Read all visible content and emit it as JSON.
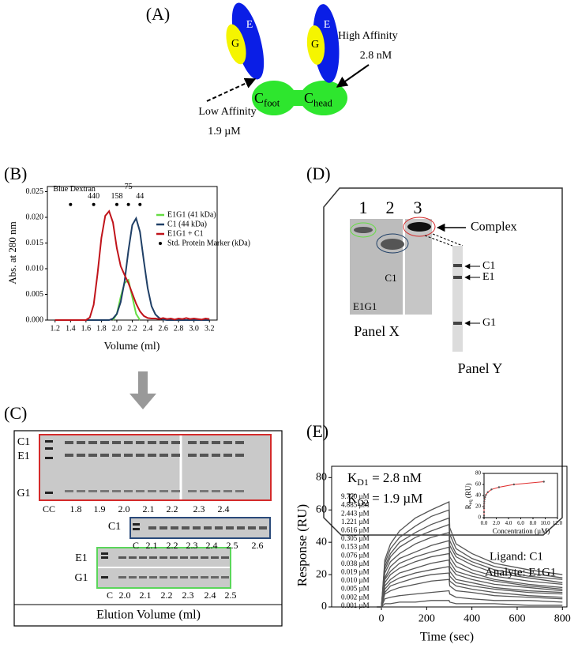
{
  "panel_a": {
    "label": "(A)",
    "e_left": "E",
    "g_left": "G",
    "e_right": "E",
    "g_right": "G",
    "c_foot": {
      "main": "C",
      "sub": "foot"
    },
    "c_head": {
      "main": "C",
      "sub": "head"
    },
    "high_affinity": {
      "label": "High Affinity",
      "value": "2.8 nM"
    },
    "low_affinity": {
      "label": "Low Affinity",
      "value": "1.9 µM"
    }
  },
  "panel_c": {
    "label": "(C)",
    "gel_1": {
      "bands": [
        "C1",
        "E1",
        "G1"
      ],
      "lanes": [
        "CC",
        "1.8",
        "1.9",
        "2.0",
        "2.1",
        "2.2",
        "2.3",
        "2.4"
      ]
    },
    "gel_2": {
      "bands": [
        "C1"
      ],
      "lanes": [
        "C",
        "2.1",
        "2.2",
        "2.3",
        "2.4",
        "2.5",
        "2.6"
      ]
    },
    "gel_3": {
      "bands": [
        "E1",
        "G1"
      ],
      "lanes": [
        "C",
        "2.0",
        "2.1",
        "2.2",
        "2.3",
        "2.4",
        "2.5"
      ]
    },
    "axis_label": "Elution Volume (ml)"
  },
  "panel_d": {
    "label": "(D)",
    "lanes": [
      "1",
      "2",
      "3"
    ],
    "complex": "Complex",
    "panel_x": {
      "title": "Panel X",
      "lane_labels": [
        "C1",
        "E1G1"
      ]
    },
    "panel_y": {
      "title": "Panel Y",
      "bands": [
        "C1",
        "E1",
        "G1"
      ]
    }
  },
  "chart_data": [
    {
      "type": "line",
      "panel_label": "(B)",
      "ylabel": "Abs. at 280 nm",
      "xlabel": "Volume (ml)",
      "x": [
        1.2,
        1.25,
        1.3,
        1.35,
        1.4,
        1.45,
        1.5,
        1.55,
        1.6,
        1.65,
        1.7,
        1.75,
        1.8,
        1.85,
        1.9,
        1.95,
        2.0,
        2.05,
        2.1,
        2.15,
        2.2,
        2.25,
        2.3,
        2.35,
        2.4,
        2.45,
        2.5,
        2.55,
        2.6,
        2.65,
        2.7,
        2.75,
        2.8,
        2.85,
        2.9,
        2.95,
        3.0,
        3.05,
        3.1,
        3.15,
        3.2
      ],
      "series": [
        {
          "name": "E1G1 (41 kDa)",
          "color": "#66dd44",
          "values": [
            null,
            null,
            null,
            null,
            null,
            null,
            null,
            null,
            null,
            null,
            null,
            null,
            null,
            null,
            null,
            0,
            0.0012,
            0.0045,
            0.0072,
            0.0078,
            0.0045,
            0.0012,
            0,
            null,
            null,
            null,
            null,
            null,
            null,
            null,
            null,
            null,
            null,
            null,
            null,
            null,
            null,
            null,
            null,
            null,
            null
          ]
        },
        {
          "name": "C1 (44 kDa)",
          "color": "#1f3f66",
          "values": [
            0,
            0,
            0,
            0,
            0,
            0,
            0,
            0,
            0,
            0,
            0,
            0,
            0,
            0,
            0,
            0.0003,
            0.0012,
            0.0035,
            0.0075,
            0.0135,
            0.0185,
            0.0198,
            0.0172,
            0.0115,
            0.0062,
            0.0027,
            0.0011,
            0.0004,
            0.0001,
            0,
            0,
            0,
            0,
            0,
            0,
            0,
            0,
            0,
            0,
            0,
            0
          ]
        },
        {
          "name": "E1G1 + C1",
          "color": "#c0131a",
          "values": [
            0,
            0,
            0,
            0,
            0,
            0,
            0,
            0,
            0,
            0.0005,
            0.003,
            0.009,
            0.016,
            0.0203,
            0.0212,
            0.019,
            0.014,
            0.0105,
            0.0088,
            0.0072,
            0.0052,
            0.0032,
            0.0017,
            0.0008,
            0.0004,
            0.0003,
            0.0003,
            0.0002,
            0.0004,
            0.0002,
            0.0003,
            0.0001,
            0.0003,
            0.0002,
            0.0004,
            0.0002,
            0.0003,
            0.0002,
            0.0001,
            0.0003,
            0.0002
          ]
        }
      ],
      "markers": {
        "name": "Std. Protein Marker (kDa)",
        "color": "#000000",
        "x": [
          1.4,
          1.7,
          2.0,
          2.15,
          2.3
        ],
        "values": [
          0.0225,
          0.0225,
          0.0225,
          0.0225,
          0.0225
        ],
        "labels": [
          "Blue Dextran",
          "440",
          "158",
          "75",
          "44"
        ]
      },
      "xlim": [
        1.1,
        3.3
      ],
      "ylim": [
        0,
        0.026
      ],
      "xticks": [
        1.2,
        1.4,
        1.6,
        1.8,
        {
          "value": 2,
          "label": "2.0"
        },
        2.2,
        2.4,
        2.6,
        2.8,
        {
          "value": 3,
          "label": "3.0"
        },
        3.2
      ],
      "yticks": [
        {
          "value": 0,
          "label": "0.000"
        },
        {
          "value": 0.005,
          "label": "0.005"
        },
        {
          "value": 0.01,
          "label": "0.010"
        },
        {
          "value": 0.015,
          "label": "0.015"
        },
        {
          "value": 0.02,
          "label": "0.020"
        },
        {
          "value": 0.025,
          "label": "0.025"
        }
      ],
      "grid": false,
      "legend_loc": "upper right"
    },
    {
      "type": "line",
      "panel_label": "(E)",
      "ylabel": "Response (RU)",
      "xlabel": "Time (sec)",
      "kd1": {
        "symbol": "K",
        "subscript": "D1",
        "text": "= 2.8 nM"
      },
      "kd2": {
        "symbol": "K",
        "subscript": "D2",
        "text": "= 1.9 µM"
      },
      "ligand": "Ligand: C1",
      "analyte": "Analyte: E1G1",
      "x": [
        -20,
        0,
        15,
        40,
        80,
        150,
        220,
        299,
        302,
        330,
        400,
        500,
        650,
        800
      ],
      "series": [
        {
          "name": "9.770 µM",
          "color": "#555555",
          "values": [
            0,
            0,
            29,
            39,
            47,
            55,
            60,
            65,
            49,
            39,
            33,
            27,
            23,
            20
          ]
        },
        {
          "name": "4.885 µM",
          "color": "#555555",
          "values": [
            0,
            0,
            27,
            36,
            43,
            50,
            56,
            60,
            45,
            36,
            30,
            25,
            21,
            18
          ]
        },
        {
          "name": "2.443 µM",
          "color": "#555555",
          "values": [
            0,
            0,
            25,
            33,
            40,
            46,
            51,
            55,
            41,
            33,
            28,
            23,
            19,
            17
          ]
        },
        {
          "name": "1.221 µM",
          "color": "#555555",
          "values": [
            0,
            0,
            23,
            31,
            37,
            43,
            47,
            51,
            38,
            31,
            26,
            21,
            18,
            15
          ]
        },
        {
          "name": "0.616 µM",
          "color": "#555555",
          "values": [
            0,
            0,
            21,
            28,
            33,
            39,
            43,
            46,
            35,
            28,
            23,
            19,
            16,
            14
          ]
        },
        {
          "name": "0.305 µM",
          "color": "#555555",
          "values": [
            0,
            0,
            18,
            25,
            30,
            34,
            38,
            41,
            31,
            25,
            21,
            17,
            14,
            12
          ]
        },
        {
          "name": "0.153 µM",
          "color": "#555555",
          "values": [
            0,
            0,
            17,
            22,
            27,
            31,
            34,
            37,
            28,
            22,
            19,
            16,
            13,
            11
          ]
        },
        {
          "name": "0.076 µM",
          "color": "#555555",
          "values": [
            0,
            0,
            15,
            20,
            24,
            28,
            31,
            33,
            25,
            20,
            17,
            14,
            12,
            10
          ]
        },
        {
          "name": "0.038 µM",
          "color": "#555555",
          "values": [
            0,
            0,
            13,
            17,
            21,
            24,
            27,
            29,
            22,
            17,
            15,
            12,
            10,
            9
          ]
        },
        {
          "name": "0.019 µM",
          "color": "#555555",
          "values": [
            0,
            0,
            11,
            15,
            18,
            21,
            23,
            25,
            19,
            15,
            13,
            11,
            9,
            8
          ]
        },
        {
          "name": "0.010 µM",
          "color": "#555555",
          "values": [
            0,
            0,
            9,
            13,
            15,
            18,
            20,
            21,
            16,
            13,
            11,
            9,
            7,
            6
          ]
        },
        {
          "name": "0.005 µM",
          "color": "#555555",
          "values": [
            0,
            0,
            8,
            10,
            12,
            14,
            16,
            17,
            13,
            10,
            9,
            7,
            6,
            5
          ]
        },
        {
          "name": "0.002 µM",
          "color": "#555555",
          "values": [
            0,
            0,
            5,
            6,
            7,
            8,
            9,
            10,
            8,
            6,
            5,
            4,
            4,
            3
          ]
        },
        {
          "name": "0.001 µM",
          "color": "#555555",
          "values": [
            0,
            0,
            2,
            2,
            3,
            3,
            4,
            4,
            3,
            2,
            2,
            2,
            1,
            1
          ]
        }
      ],
      "xlim": [
        -220,
        820
      ],
      "ylim": [
        0,
        87
      ],
      "xticks": [
        0,
        200,
        400,
        600,
        800
      ],
      "yticks": [
        0,
        20,
        40,
        60,
        80
      ],
      "grid": false
    },
    {
      "type": "scatter",
      "xlabel": "Concentration (µM)",
      "ylabel": {
        "symbol": "R",
        "subscript": "eq",
        "text": "(RU)"
      },
      "x": [
        0.001,
        0.002,
        0.005,
        0.01,
        0.019,
        0.038,
        0.076,
        0.153,
        0.305,
        0.616,
        1.221,
        2.443,
        4.885,
        9.77
      ],
      "values": [
        4,
        10,
        17,
        21,
        25,
        29,
        33,
        37,
        41,
        46,
        51,
        55,
        60,
        65
      ],
      "color": "#555555",
      "fit_color": "#e03030",
      "xlim": [
        0,
        12
      ],
      "ylim": [
        0,
        80
      ],
      "xticks": [
        {
          "value": 0,
          "label": "0.0"
        },
        {
          "value": 2,
          "label": "2.0"
        },
        {
          "value": 4,
          "label": "4.0"
        },
        {
          "value": 6,
          "label": "6.0"
        },
        {
          "value": 8,
          "label": "8.0"
        },
        {
          "value": 10,
          "label": "10.0"
        },
        {
          "value": 12,
          "label": "12.0"
        }
      ],
      "yticks": [
        0,
        20,
        40,
        60,
        80
      ],
      "grid": false
    }
  ]
}
